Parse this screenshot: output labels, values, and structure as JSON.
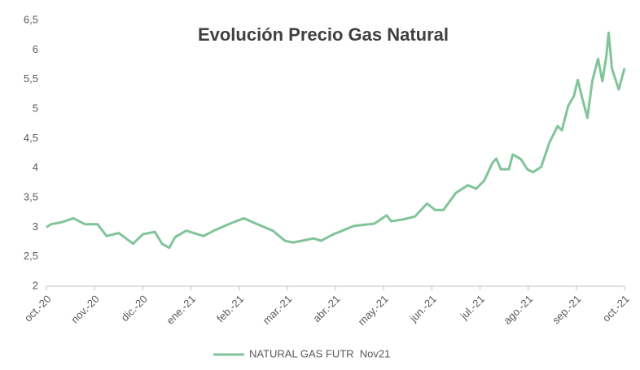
{
  "chart_data": {
    "type": "line",
    "title": "Evolución Precio Gas Natural",
    "x": [
      0,
      0.1,
      0.3,
      0.56,
      0.8,
      1.06,
      1.25,
      1.5,
      1.8,
      2.0,
      2.25,
      2.4,
      2.55,
      2.67,
      2.9,
      3.26,
      3.5,
      3.9,
      4.1,
      4.35,
      4.7,
      4.95,
      5.12,
      5.55,
      5.7,
      5.96,
      6.38,
      6.81,
      7.06,
      7.16,
      7.4,
      7.65,
      7.9,
      8.07,
      8.24,
      8.5,
      8.75,
      8.92,
      9.09,
      9.26,
      9.34,
      9.43,
      9.6,
      9.68,
      9.85,
      9.98,
      10.1,
      10.27,
      10.44,
      10.61,
      10.7,
      10.83,
      10.95,
      11.03,
      11.12,
      11.23,
      11.33,
      11.45,
      11.54,
      11.62,
      11.67,
      11.74,
      11.88,
      12
    ],
    "series": [
      {
        "name": "NATURAL GAS FUTR  Nov21",
        "color": "#82c49a",
        "values": [
          3.0,
          3.05,
          3.08,
          3.15,
          3.05,
          3.05,
          2.85,
          2.9,
          2.72,
          2.88,
          2.92,
          2.72,
          2.65,
          2.83,
          2.94,
          2.85,
          2.95,
          3.09,
          3.15,
          3.06,
          2.94,
          2.77,
          2.74,
          2.81,
          2.77,
          2.88,
          3.02,
          3.06,
          3.2,
          3.1,
          3.13,
          3.18,
          3.4,
          3.29,
          3.29,
          3.58,
          3.71,
          3.65,
          3.79,
          4.09,
          4.16,
          3.98,
          3.98,
          4.23,
          4.15,
          3.98,
          3.93,
          4.02,
          4.43,
          4.71,
          4.64,
          5.05,
          5.22,
          5.49,
          5.19,
          4.85,
          5.47,
          5.85,
          5.47,
          5.88,
          6.29,
          5.68,
          5.33,
          5.69
        ]
      }
    ],
    "xlim": [
      0,
      12
    ],
    "xticks": [
      {
        "value": 0,
        "label": "oct.-20"
      },
      {
        "value": 1,
        "label": "nov.-20"
      },
      {
        "value": 2,
        "label": "dic.-20"
      },
      {
        "value": 3,
        "label": "ene.-21"
      },
      {
        "value": 4,
        "label": "feb.-21"
      },
      {
        "value": 5,
        "label": "mar.-21"
      },
      {
        "value": 6,
        "label": "abr.-21"
      },
      {
        "value": 7,
        "label": "may.-21"
      },
      {
        "value": 8,
        "label": "jun.-21"
      },
      {
        "value": 9,
        "label": "jul.-21"
      },
      {
        "value": 10,
        "label": "ago.-21"
      },
      {
        "value": 11,
        "label": "sep.-21"
      },
      {
        "value": 12,
        "label": "oct.-21"
      }
    ],
    "ylim": [
      2,
      6.5
    ],
    "yticks": [
      2,
      {
        "value": 2.5,
        "label": "2,5"
      },
      3,
      {
        "value": 3.5,
        "label": "3,5"
      },
      4,
      {
        "value": 4.5,
        "label": "4,5"
      },
      5,
      {
        "value": 5.5,
        "label": "5,5"
      },
      6,
      {
        "value": 6.5,
        "label": "6,5"
      }
    ],
    "legend": "bottom"
  }
}
